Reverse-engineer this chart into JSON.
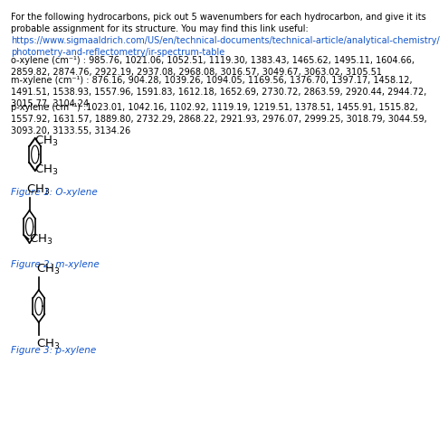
{
  "bg_color": "#ffffff",
  "text_color": "#000000",
  "link_color": "#1155CC",
  "figure_label_color": "#1155CC",
  "title_text": "For the following hydrocarbons, pick out 5 wavenumbers for each hydrocarbon, and give it its\nprobable assignment for its structure. You may find this link useful:",
  "link_text": "https://www.sigmaaldrich.com/US/en/technical-documents/technical-article/analytical-chemistry/\nphotometry-and-reflectometry/ir-spectrum-table",
  "o_xylene_text": "o-xylene (cm⁻¹) : 985.76, 1021.06, 1052.51, 1119.30, 1383.43, 1465.62, 1495.11, 1604.66,\n2859.82, 2874.76, 2922.19, 2937.08, 2968.08, 3016.57, 3049.67, 3063.02, 3105.51",
  "m_xylene_text": "m-xylene (cm⁻¹) : 876.16, 904.28, 1039.26, 1094.05, 1169.56, 1376.70, 1397.17, 1458.12,\n1491.51, 1538.93, 1557.96, 1591.83, 1612.18, 1652.69, 2730.72, 2863.59, 2920.44, 2944.72,\n3015.77, 3104.24",
  "p_xylene_text": "p-xylene (cm⁻¹) :1023.01, 1042.16, 1102.92, 1119.19, 1219.51, 1378.51, 1455.91, 1515.82,\n1557.92, 1631.57, 1889.80, 2732.29, 2868.22, 2921.93, 2976.07, 2999.25, 3018.79, 3044.59,\n3093.20, 3133.55, 3134.26",
  "fig1_label": "Figure 1: O-xylene",
  "fig2_label": "Figure 2: m-xylene",
  "fig3_label": "Figure 3: p-xylene",
  "font_size_main": 7.0,
  "font_size_label": 7.5,
  "font_size_chem": 9.0
}
